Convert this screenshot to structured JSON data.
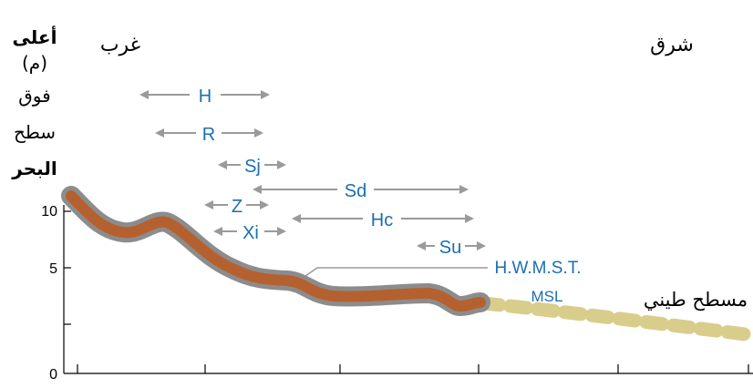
{
  "axis": {
    "ylabel_lines": [
      "أعلى",
      "(م)",
      "فوق",
      "سطح",
      "البحر"
    ],
    "ticks": [
      "10",
      "5",
      "0"
    ]
  },
  "directions": {
    "west": "غرب",
    "east": "شرق"
  },
  "zones": {
    "H": "H",
    "R": "R",
    "Sj": "Sj",
    "Sd": "Sd",
    "Z": "Z",
    "Hc": "Hc",
    "Xi": "Xi",
    "Su": "Su"
  },
  "levels": {
    "hwmst": "H.W.M.S.T.",
    "msl": "MSL"
  },
  "mudflat_label": "مسطح طيني",
  "colors": {
    "profile": "#b5612f",
    "profile_outline": "#8c8c8c",
    "mudflat": "#d9cd8c",
    "arrow": "#9a9a9a",
    "label": "#1a6fb0"
  }
}
